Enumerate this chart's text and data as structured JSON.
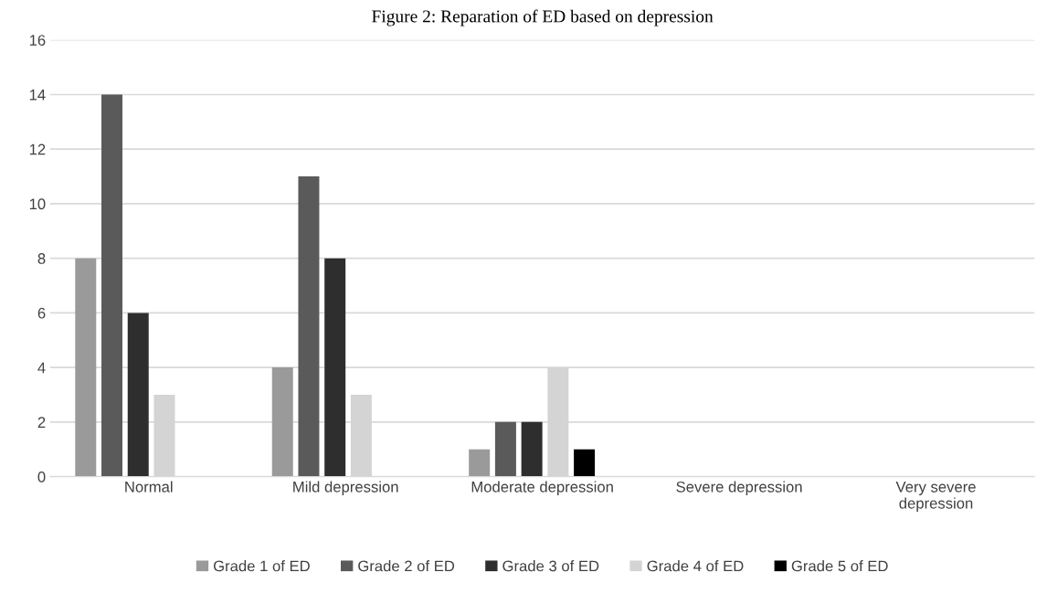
{
  "chart_data": {
    "type": "bar",
    "title": "Figure 2: Reparation of ED based on depression",
    "categories": [
      "Normal",
      "Mild depression",
      "Moderate depression",
      "Severe depression",
      "Very severe\ndepression"
    ],
    "series": [
      {
        "name": "Grade 1 of ED",
        "color": "#9a9a9a",
        "values": [
          8,
          4,
          1,
          0,
          0
        ]
      },
      {
        "name": "Grade 2 of ED",
        "color": "#5a5a5a",
        "values": [
          14,
          11,
          2,
          0,
          0
        ]
      },
      {
        "name": "Grade 3 of ED",
        "color": "#2e2e2e",
        "values": [
          6,
          8,
          2,
          0,
          0
        ]
      },
      {
        "name": "Grade 4 of ED",
        "color": "#d4d4d4",
        "values": [
          3,
          3,
          4,
          0,
          0
        ]
      },
      {
        "name": "Grade 5 of ED",
        "color": "#000000",
        "values": [
          0,
          0,
          1,
          0,
          0
        ]
      }
    ],
    "ylim": [
      0,
      16
    ],
    "yticks": [
      0,
      2,
      4,
      6,
      8,
      10,
      12,
      14,
      16
    ],
    "grid": "y",
    "legend": "bottom"
  }
}
